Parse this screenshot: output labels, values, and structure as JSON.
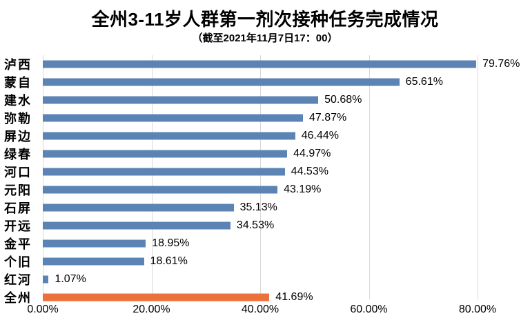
{
  "title": "全州3-11岁人群第一剂次接种任务完成情况",
  "subtitle": "（截至2021年11月7日17：00）",
  "colors": {
    "bar_default": "#5B84B5",
    "bar_highlight": "#ED713C",
    "gridline": "#D9D9D9",
    "text": "#000000",
    "background": "#FFFFFF"
  },
  "chart_data": {
    "type": "bar",
    "orientation": "horizontal",
    "title": "全州3-11岁人群第一剂次接种任务完成情况",
    "subtitle": "（截至2021年11月7日17：00）",
    "categories": [
      "泸西",
      "蒙自",
      "建水",
      "弥勒",
      "屏边",
      "绿春",
      "河口",
      "元阳",
      "石屏",
      "开远",
      "金平",
      "个旧",
      "红河",
      "全州"
    ],
    "values": [
      79.76,
      65.61,
      50.68,
      47.87,
      46.44,
      44.97,
      44.53,
      43.19,
      35.13,
      34.53,
      18.95,
      18.61,
      1.07,
      41.69
    ],
    "data_labels": [
      "79.76%",
      "65.61%",
      "50.68%",
      "47.87%",
      "46.44%",
      "44.97%",
      "44.53%",
      "43.19%",
      "35.13%",
      "34.53%",
      "18.95%",
      "18.61%",
      "1.07%",
      "41.69%"
    ],
    "highlight_category": "全州",
    "xlabel": "",
    "ylabel": "",
    "x_axis": {
      "ticks": [
        0,
        20,
        40,
        60,
        80
      ],
      "tick_labels": [
        "0.00%",
        "20.00%",
        "40.00%",
        "60.00%",
        "80.00%"
      ],
      "max": 89.5
    },
    "grid": true,
    "legend": false,
    "data_labels_shown": true
  }
}
